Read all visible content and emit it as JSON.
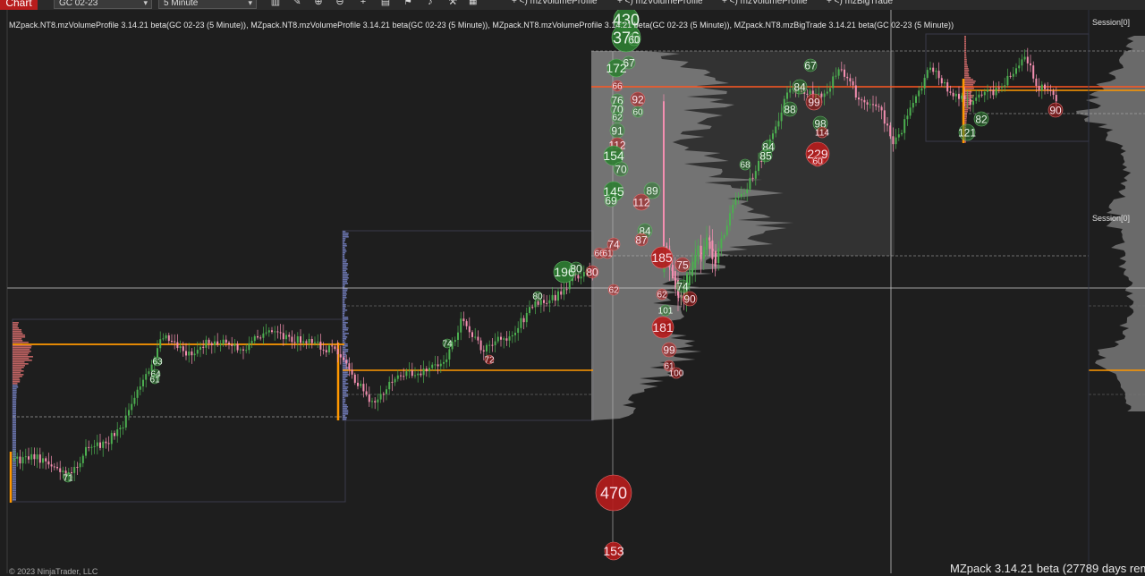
{
  "toolbar": {
    "chart_label": "Chart",
    "instrument": "GC 02-23",
    "interval": "5 Minute",
    "indicators": [
      "mzVolumeProfile",
      "mzVolumeProfile",
      "mzVolumeProfile",
      "mzBigTrade"
    ],
    "icons": [
      "bar-type-icon",
      "draw-tool-icon",
      "zoom-in-icon",
      "zoom-out-icon",
      "crosshair-icon",
      "properties-icon",
      "chart-trader-icon",
      "strategies-icon",
      "indicators-icon"
    ],
    "indicator_prefix": "+ <)"
  },
  "chart": {
    "header": "MZpack.NT8.mzVolumeProfile 3.14.21 beta(GC 02-23 (5 Minute)), MZpack.NT8.mzVolumeProfile 3.14.21 beta(GC 02-23 (5 Minute)), MZpack.NT8.mzVolumeProfile 3.14.21 beta(GC 02-23 (5 Minute)), MZpack.NT8.mzBigTrade 3.14.21 beta(GC 02-23 (5 Minute))",
    "session_label_1": "Session[0]",
    "session_label_2": "Session[0]",
    "status": "MZpack 3.14.21 beta  (27789 days rem",
    "copyright": "© 2023 NinjaTrader, LLC",
    "colors": {
      "background": "#1e1e1e",
      "up_candle": "#4caf50",
      "down_candle": "#f48fb1",
      "poc": "#ff9800",
      "vwap": "#ff5722",
      "buy_bubble": "#2e7d32",
      "sell_bubble": "#b71c1c",
      "profile": "#8a8a8a"
    }
  },
  "big_trades": [
    {
      "label": "71",
      "side": "buy"
    },
    {
      "label": "63",
      "side": "buy"
    },
    {
      "label": "64",
      "side": "buy"
    },
    {
      "label": "61",
      "side": "buy"
    },
    {
      "label": "74",
      "side": "buy"
    },
    {
      "label": "72",
      "side": "sell"
    },
    {
      "label": "80",
      "side": "buy"
    },
    {
      "label": "196",
      "side": "buy"
    },
    {
      "label": "80",
      "side": "buy"
    },
    {
      "label": "66",
      "side": "sell"
    },
    {
      "label": "61",
      "side": "sell"
    },
    {
      "label": "80",
      "side": "sell"
    },
    {
      "label": "74",
      "side": "sell"
    },
    {
      "label": "62",
      "side": "sell"
    },
    {
      "label": "470",
      "side": "sell"
    },
    {
      "label": "153",
      "side": "sell"
    },
    {
      "label": "430",
      "side": "buy"
    },
    {
      "label": "376",
      "side": "buy"
    },
    {
      "label": "60",
      "side": "buy"
    },
    {
      "label": "67",
      "side": "buy"
    },
    {
      "label": "172",
      "side": "buy"
    },
    {
      "label": "66",
      "side": "sell"
    },
    {
      "label": "76",
      "side": "buy"
    },
    {
      "label": "92",
      "side": "sell"
    },
    {
      "label": "70",
      "side": "buy"
    },
    {
      "label": "60",
      "side": "buy"
    },
    {
      "label": "62",
      "side": "buy"
    },
    {
      "label": "91",
      "side": "buy"
    },
    {
      "label": "112",
      "side": "sell"
    },
    {
      "label": "154",
      "side": "buy"
    },
    {
      "label": "70",
      "side": "buy"
    },
    {
      "label": "145",
      "side": "buy"
    },
    {
      "label": "69",
      "side": "buy"
    },
    {
      "label": "89",
      "side": "buy"
    },
    {
      "label": "112",
      "side": "sell"
    },
    {
      "label": "84",
      "side": "buy"
    },
    {
      "label": "87",
      "side": "sell"
    },
    {
      "label": "185",
      "side": "sell"
    },
    {
      "label": "75",
      "side": "sell"
    },
    {
      "label": "74",
      "side": "buy"
    },
    {
      "label": "62",
      "side": "sell"
    },
    {
      "label": "90",
      "side": "sell"
    },
    {
      "label": "101",
      "side": "buy"
    },
    {
      "label": "181",
      "side": "sell"
    },
    {
      "label": "99",
      "side": "sell"
    },
    {
      "label": "61",
      "side": "sell"
    },
    {
      "label": "100",
      "side": "sell"
    },
    {
      "label": "67",
      "side": "buy"
    },
    {
      "label": "84",
      "side": "buy"
    },
    {
      "label": "88",
      "side": "buy"
    },
    {
      "label": "99",
      "side": "sell"
    },
    {
      "label": "98",
      "side": "buy"
    },
    {
      "label": "114",
      "side": "sell"
    },
    {
      "label": "68",
      "side": "buy"
    },
    {
      "label": "84",
      "side": "buy"
    },
    {
      "label": "85",
      "side": "buy"
    },
    {
      "label": "229",
      "side": "sell"
    },
    {
      "label": "60",
      "side": "sell"
    },
    {
      "label": "121",
      "side": "buy"
    },
    {
      "label": "82",
      "side": "buy"
    },
    {
      "label": "90",
      "side": "sell"
    }
  ]
}
